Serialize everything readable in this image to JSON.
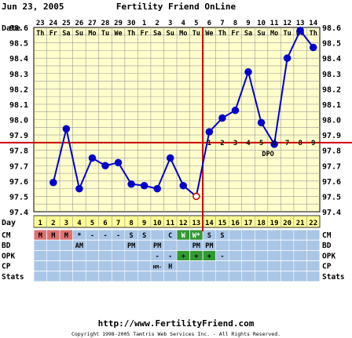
{
  "header": {
    "date": "Jun 23, 2005",
    "app_title": "Fertility Friend OnLine"
  },
  "footer": {
    "url": "http://www.FertilityFriend.com",
    "copyright": "Copyright 1998-2005 Tamtris Web Services Inc. - All Rights Reserved."
  },
  "colors": {
    "background": "#ffffcc",
    "grid": "#999999",
    "line": "#0000cc",
    "coverline": "#cc0000",
    "band": "#a9c6e6",
    "day_row": "#ffff99",
    "cm_red": "#e07070",
    "cm_green": "#339933",
    "opk_green": "#339933"
  },
  "chart_data": {
    "type": "line",
    "title": "Fertility Friend OnLine",
    "ylim": [
      97.4,
      98.6
    ],
    "date_label": "Date",
    "day_label": "Day",
    "dates": [
      "23",
      "24",
      "25",
      "26",
      "27",
      "28",
      "29",
      "30",
      "1",
      "2",
      "3",
      "4",
      "5",
      "6",
      "7",
      "8",
      "9",
      "10",
      "11",
      "12",
      "13",
      "14"
    ],
    "weekdays": [
      "Th",
      "Fr",
      "Sa",
      "Su",
      "Mo",
      "Tu",
      "We",
      "Th",
      "Fr",
      "Sa",
      "Su",
      "Mo",
      "Tu",
      "We",
      "Th",
      "Fr",
      "Sa",
      "Su",
      "Mo",
      "Tu",
      "We",
      "Th"
    ],
    "days": [
      1,
      2,
      3,
      4,
      5,
      6,
      7,
      8,
      9,
      10,
      11,
      12,
      13,
      14,
      15,
      16,
      17,
      18,
      19,
      20,
      21,
      22
    ],
    "y_ticks": [
      "97.4",
      "97.5",
      "97.6",
      "97.7",
      "97.8",
      "97.9",
      "98.0",
      "98.1",
      "98.2",
      "98.3",
      "98.4",
      "98.5",
      "98.6"
    ],
    "series": [
      {
        "values": [
          null,
          97.59,
          97.94,
          97.55,
          97.75,
          97.7,
          97.72,
          97.58,
          97.57,
          97.55,
          97.75,
          97.57,
          97.5,
          97.92,
          98.01,
          98.06,
          98.31,
          97.98,
          97.84,
          98.4,
          98.58,
          98.47
        ]
      }
    ],
    "coverline": 97.85,
    "ovulation_day": 13,
    "dpo_labels": [
      "1",
      "2",
      "3",
      "4",
      "5",
      "6",
      "7",
      "8",
      "9"
    ],
    "dpo_text": "DPO",
    "rows": {
      "CM": [
        "M",
        "M",
        "M",
        "*",
        "-",
        "-",
        "-",
        "S",
        "S",
        "",
        "C",
        "W",
        "W*",
        "S",
        "S",
        "",
        "",
        "",
        "",
        "",
        "",
        ""
      ],
      "BD": [
        "",
        "",
        "",
        "AM",
        "",
        "",
        "",
        "PM",
        "",
        "PM",
        "",
        "",
        "PM",
        "PM",
        "",
        "",
        "",
        "",
        "",
        "",
        "",
        ""
      ],
      "OPK": [
        "",
        "",
        "",
        "",
        "",
        "",
        "",
        "",
        "",
        "-",
        "-",
        "+",
        "+",
        "+",
        "-",
        "",
        "",
        "",
        "",
        "",
        "",
        ""
      ],
      "CP": [
        "",
        "",
        "",
        "",
        "",
        "",
        "",
        "",
        "",
        "HM-",
        "H",
        "",
        "",
        "",
        "",
        "",
        "",
        "",
        "",
        "",
        "",
        ""
      ],
      "Stats": [
        "",
        "",
        "",
        "",
        "",
        "",
        "",
        "",
        "",
        "",
        "",
        "",
        "",
        "",
        "",
        "",
        "",
        "",
        "",
        "",
        "",
        ""
      ]
    },
    "row_labels": [
      "CM",
      "BD",
      "OPK",
      "CP",
      "Stats"
    ]
  }
}
